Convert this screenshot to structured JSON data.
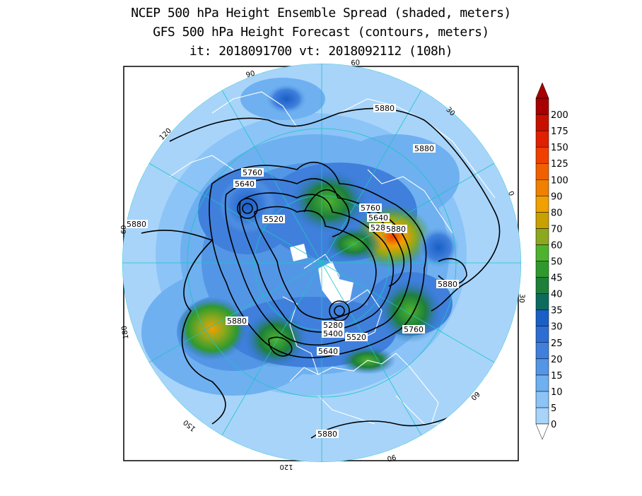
{
  "title": {
    "line1": "NCEP 500 hPa Height Ensemble Spread (shaded, meters)",
    "line2": "GFS 500 hPa Height Forecast (contours, meters)",
    "line3": "it: 2018091700      vt: 2018092112 (108h)"
  },
  "longitude_labels": [
    "60",
    "30",
    "0",
    "30",
    "60",
    "90",
    "120",
    "150",
    "180",
    "120",
    "90",
    "60"
  ],
  "contour_labels": [
    "5880",
    "5880",
    "5880",
    "5760",
    "5640",
    "5520",
    "5760",
    "5640",
    "5280",
    "5880",
    "5880",
    "5280",
    "5400",
    "5520",
    "5640",
    "5760",
    "5880",
    "5880"
  ],
  "colorbar": {
    "labels": [
      "0",
      "5",
      "10",
      "15",
      "20",
      "25",
      "30",
      "35",
      "40",
      "45",
      "50",
      "60",
      "70",
      "80",
      "90",
      "100",
      "125",
      "150",
      "175",
      "200"
    ],
    "colors": [
      "#a8d4fa",
      "#8cc4f7",
      "#6fb0f0",
      "#5496e6",
      "#4080dc",
      "#2e6ed2",
      "#1a5fc6",
      "#0d6b5e",
      "#1e7f3a",
      "#2e9a2e",
      "#4db32e",
      "#8ca81e",
      "#c8a000",
      "#f0a000",
      "#f08000",
      "#f06000",
      "#f04000",
      "#e02000",
      "#c81000",
      "#a80000"
    ]
  },
  "colors": {
    "ocean_base": "#a8d4fa",
    "contour": "#000000",
    "coastline": "#ffffff",
    "gridline": "#19c5c5"
  }
}
